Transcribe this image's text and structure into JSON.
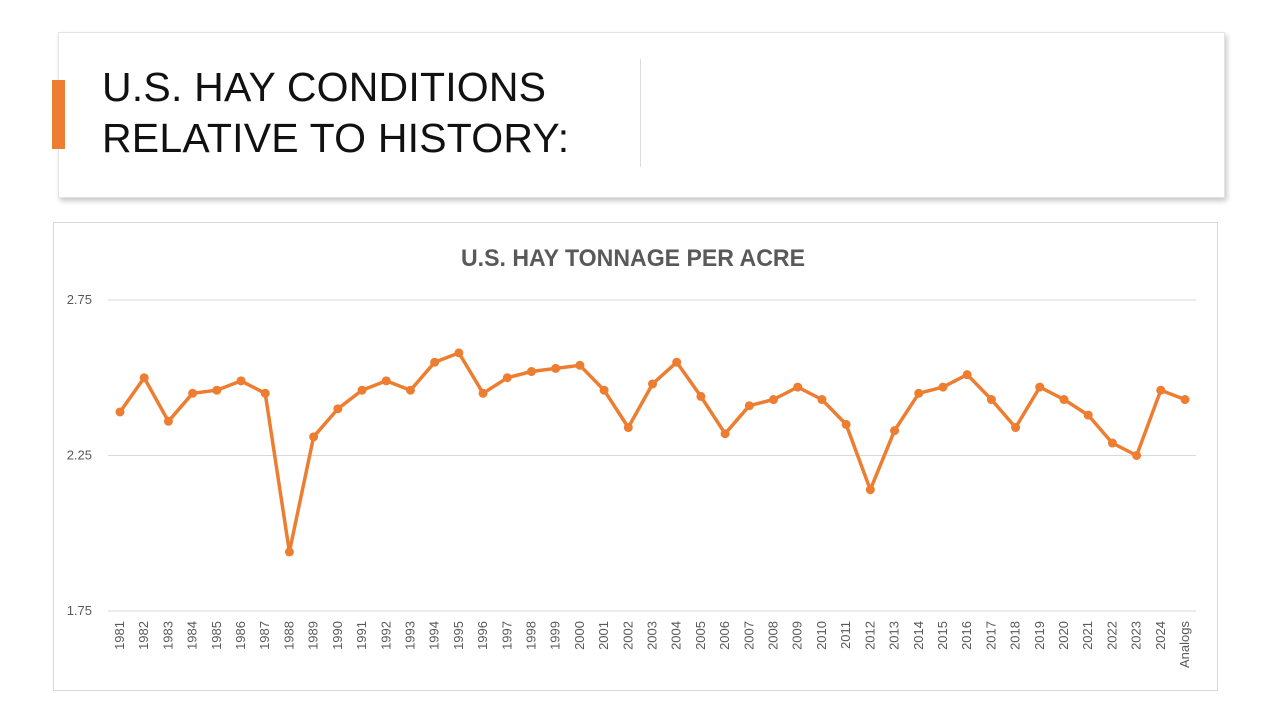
{
  "slide": {
    "title_line1": "U.S. HAY CONDITIONS",
    "title_line2": "RELATIVE TO HISTORY:",
    "accent_color": "#ed7d31"
  },
  "chart_data": {
    "type": "line",
    "title": "U.S. HAY TONNAGE PER ACRE",
    "xlabel": "",
    "ylabel": "",
    "ylim": [
      1.75,
      2.75
    ],
    "yticks": [
      "1.75",
      "2.25",
      "2.75"
    ],
    "grid": true,
    "legend": "none",
    "color": "#ed7d31",
    "categories": [
      "1981",
      "1982",
      "1983",
      "1984",
      "1985",
      "1986",
      "1987",
      "1988",
      "1989",
      "1990",
      "1991",
      "1992",
      "1993",
      "1994",
      "1995",
      "1996",
      "1997",
      "1998",
      "1999",
      "2000",
      "2001",
      "2002",
      "2003",
      "2004",
      "2005",
      "2006",
      "2007",
      "2008",
      "2009",
      "2010",
      "2011",
      "2012",
      "2013",
      "2014",
      "2015",
      "2016",
      "2017",
      "2018",
      "2019",
      "2020",
      "2021",
      "2022",
      "2023",
      "2024",
      "Analogs"
    ],
    "series": [
      {
        "values": [
          2.39,
          2.5,
          2.36,
          2.45,
          2.46,
          2.49,
          2.45,
          1.94,
          2.31,
          2.4,
          2.46,
          2.49,
          2.46,
          2.55,
          2.58,
          2.45,
          2.5,
          2.52,
          2.53,
          2.54,
          2.46,
          2.34,
          2.48,
          2.55,
          2.44,
          2.32,
          2.41,
          2.43,
          2.47,
          2.43,
          2.35,
          2.14,
          2.33,
          2.45,
          2.47,
          2.51,
          2.43,
          2.34,
          2.47,
          2.43,
          2.38,
          2.29,
          2.25,
          2.46,
          2.43
        ]
      }
    ]
  }
}
